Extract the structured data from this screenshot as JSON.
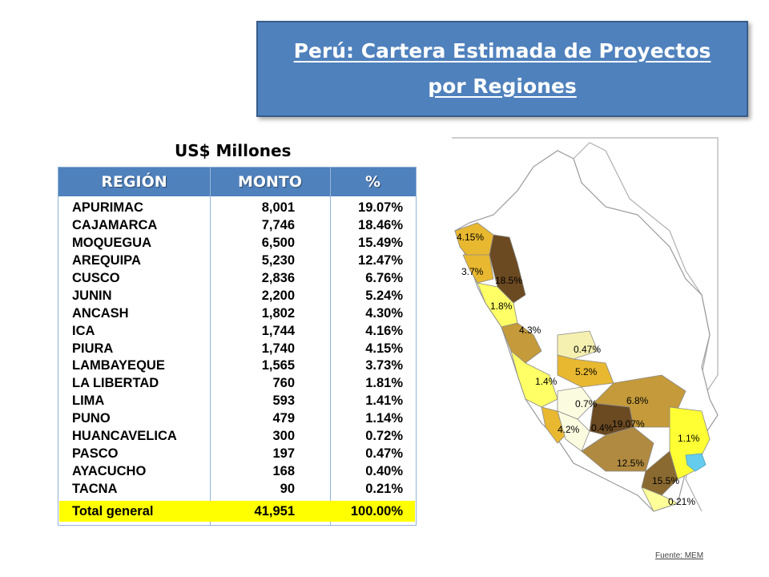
{
  "title": {
    "line1": "Perú:  Cartera Estimada de Proyectos",
    "line2": "por Regiones"
  },
  "units": "US$ Millones",
  "table": {
    "headers": [
      "REGIÓN",
      "MONTO",
      "%"
    ],
    "rows": [
      [
        "APURIMAC",
        "8,001",
        "19.07%"
      ],
      [
        "CAJAMARCA",
        "7,746",
        "18.46%"
      ],
      [
        "MOQUEGUA",
        "6,500",
        "15.49%"
      ],
      [
        "AREQUIPA",
        "5,230",
        "12.47%"
      ],
      [
        "CUSCO",
        "2,836",
        "6.76%"
      ],
      [
        "JUNIN",
        "2,200",
        "5.24%"
      ],
      [
        "ANCASH",
        "1,802",
        "4.30%"
      ],
      [
        "ICA",
        "1,744",
        "4.16%"
      ],
      [
        "PIURA",
        "1,740",
        "4.15%"
      ],
      [
        "LAMBAYEQUE",
        "1,565",
        "3.73%"
      ],
      [
        "LA LIBERTAD",
        "760",
        "1.81%"
      ],
      [
        "LIMA",
        "593",
        "1.41%"
      ],
      [
        "PUNO",
        "479",
        "1.14%"
      ],
      [
        "HUANCAVELICA",
        "300",
        "0.72%"
      ],
      [
        "PASCO",
        "197",
        "0.47%"
      ],
      [
        "AYACUCHO",
        "168",
        "0.40%"
      ],
      [
        "TACNA",
        "90",
        "0.21%"
      ]
    ],
    "total": [
      "Total general",
      "41,951",
      "100.00%"
    ]
  },
  "chart_data": {
    "type": "table",
    "title": "Perú:  Cartera Estimada de Proyectos por Regiones",
    "unit": "US$ Millones",
    "columns": [
      "REGIÓN",
      "MONTO",
      "%"
    ],
    "categories": [
      "APURIMAC",
      "CAJAMARCA",
      "MOQUEGUA",
      "AREQUIPA",
      "CUSCO",
      "JUNIN",
      "ANCASH",
      "ICA",
      "PIURA",
      "LAMBAYEQUE",
      "LA LIBERTAD",
      "LIMA",
      "PUNO",
      "HUANCAVELICA",
      "PASCO",
      "AYACUCHO",
      "TACNA"
    ],
    "monto": [
      8001,
      7746,
      6500,
      5230,
      2836,
      2200,
      1802,
      1744,
      1740,
      1565,
      760,
      593,
      479,
      300,
      197,
      168,
      90
    ],
    "percent": [
      19.07,
      18.46,
      15.49,
      12.47,
      6.76,
      5.24,
      4.3,
      4.16,
      4.15,
      3.73,
      1.81,
      1.41,
      1.14,
      0.72,
      0.47,
      0.4,
      0.21
    ],
    "total": {
      "monto": 41951,
      "percent": 100.0
    }
  },
  "map": {
    "labels": [
      "4.15%",
      "3.7%",
      "18.5%",
      "1.8%",
      "4.3%",
      "0.47%",
      "5.2%",
      "1.4%",
      "6.8%",
      "0.7%",
      "19.07%",
      "4.2%",
      "0.4%",
      "1.1%",
      "12.5%",
      "15.5%",
      "0.21%"
    ],
    "colors": {
      "low": "#ffff66",
      "mid": "#e8b830",
      "high": "#c49a3a",
      "top": "#6b4a22",
      "outline": "#9a9a9a",
      "lake": "#66ccee"
    }
  },
  "source": "Fuente: MEM"
}
